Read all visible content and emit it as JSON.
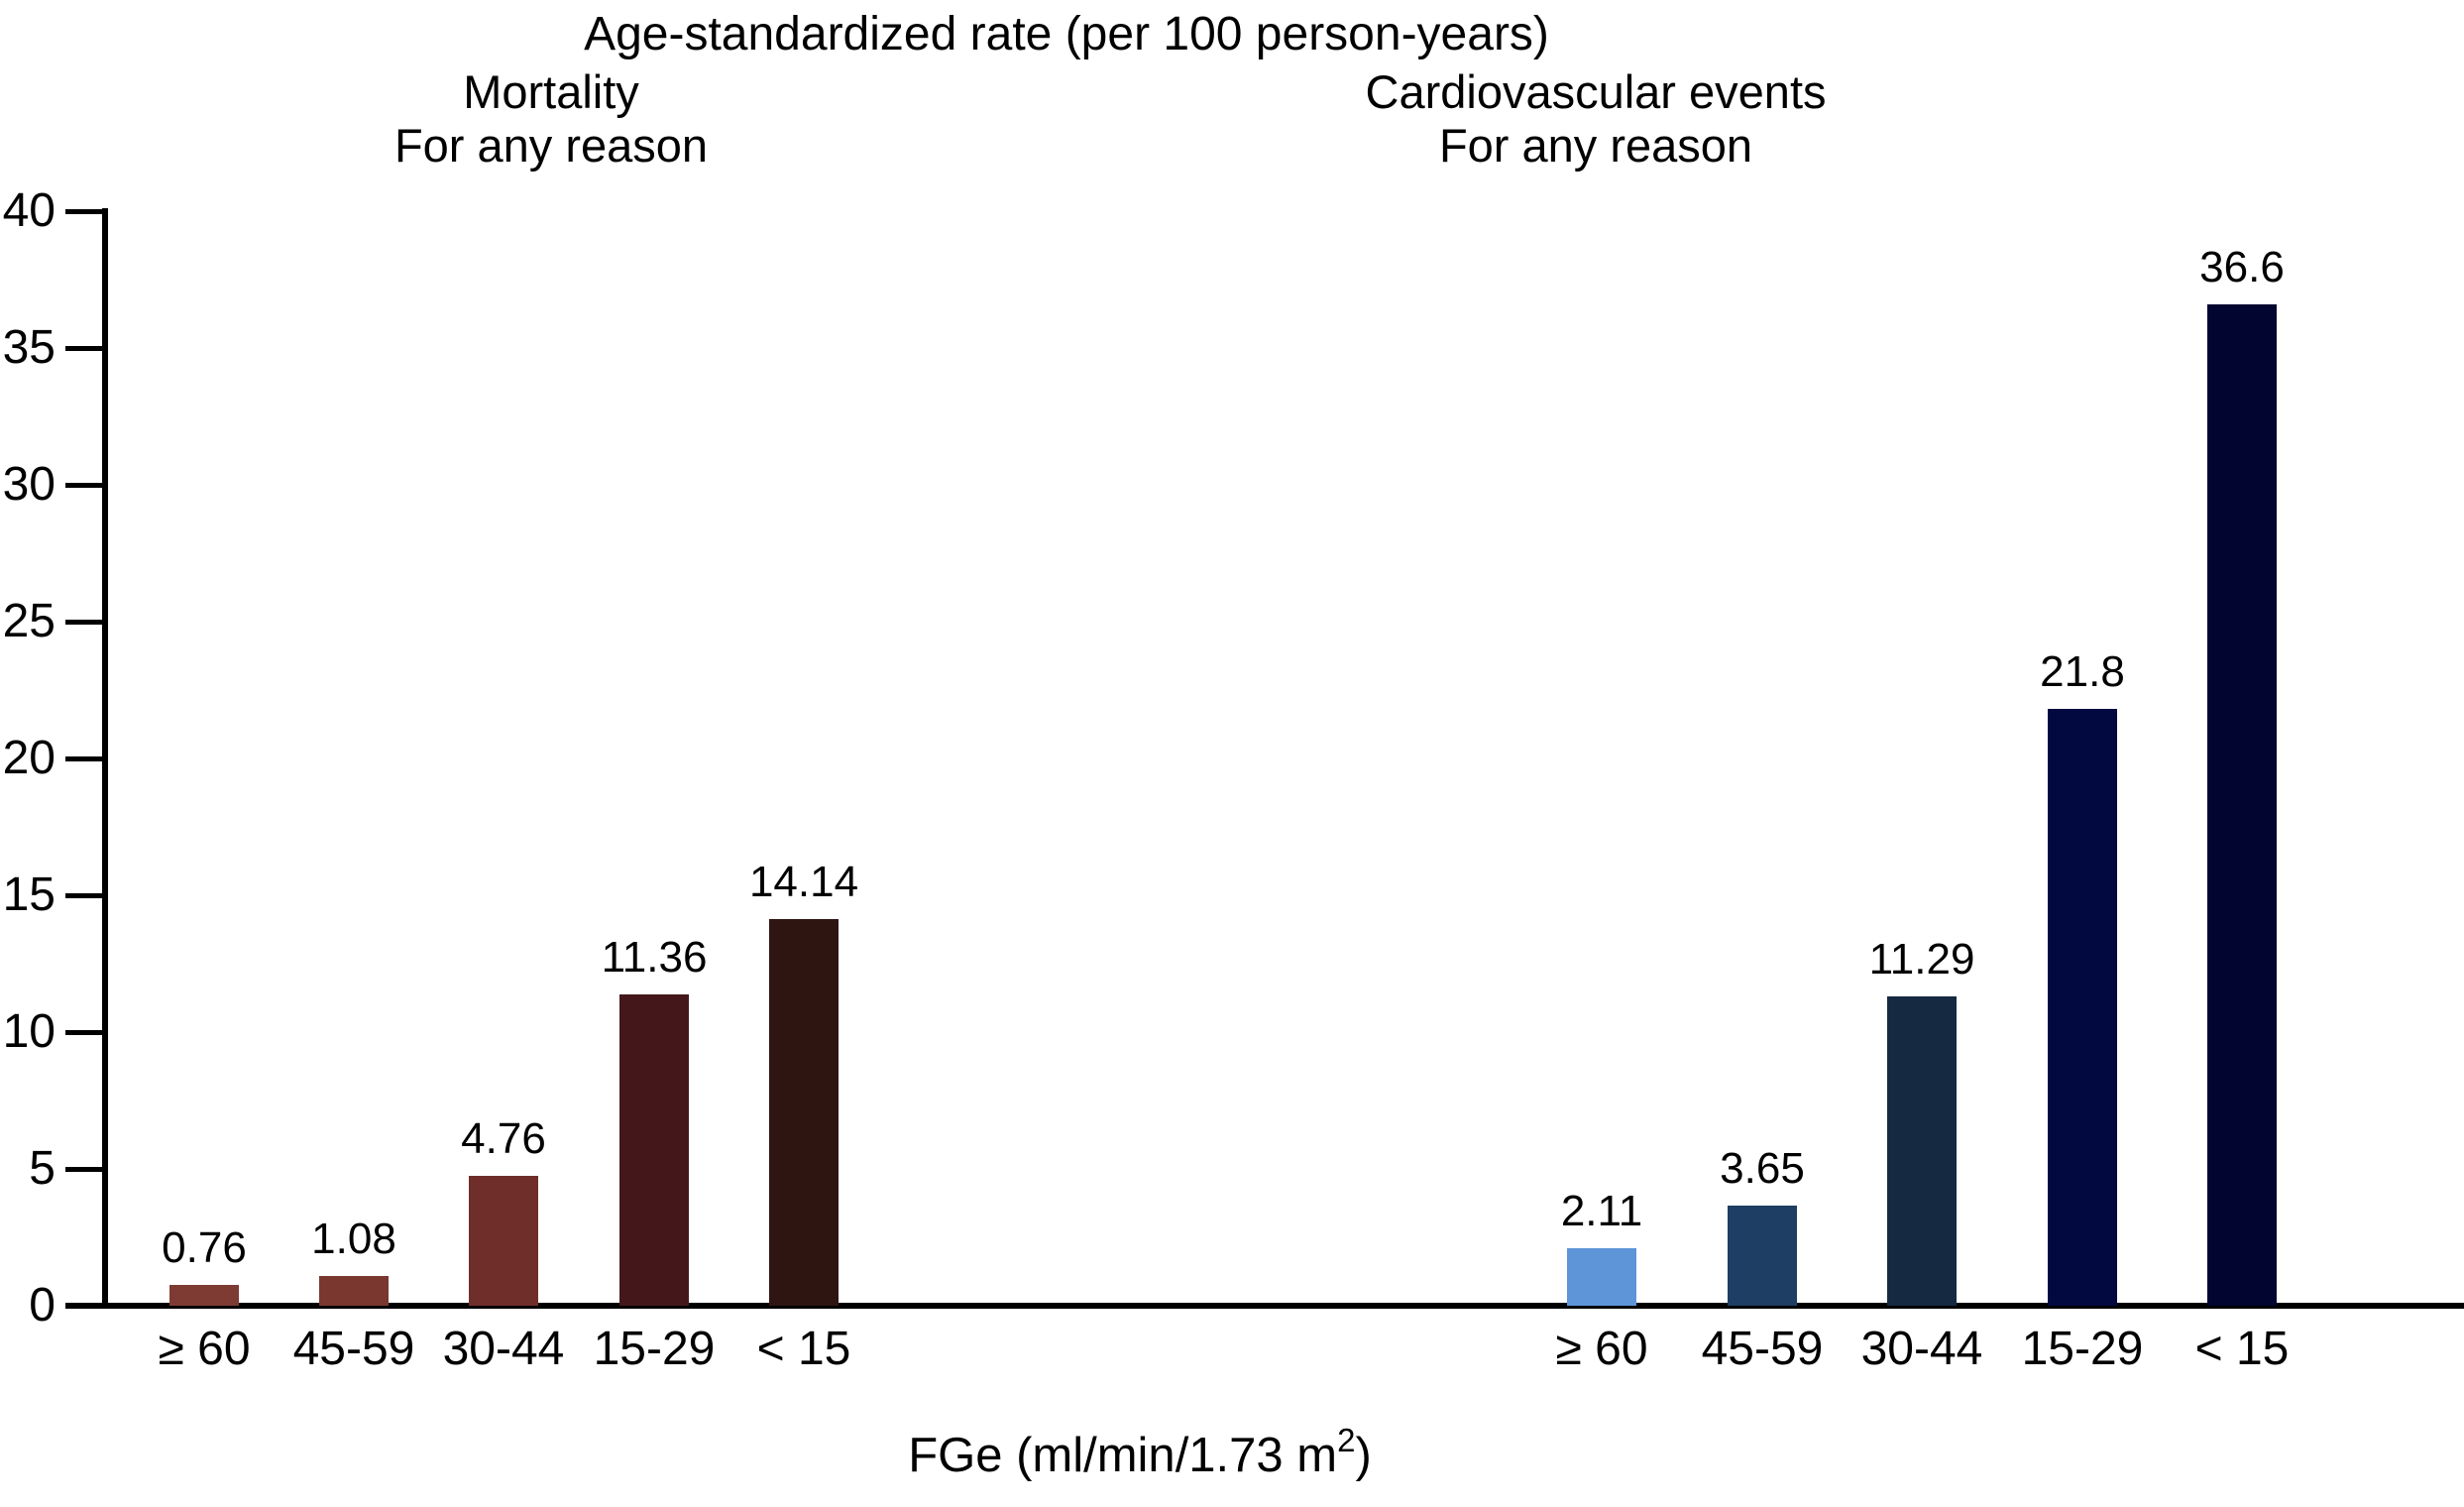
{
  "chart_data": {
    "type": "bar",
    "title": "Age-standardized rate (per 100 person-years)",
    "xlabel": {
      "prefix": "FGe (ml/min/1.73 m",
      "sup": "2",
      "suffix": ")"
    },
    "ylim": [
      0,
      40
    ],
    "yticks": [
      0,
      5,
      10,
      15,
      20,
      25,
      30,
      35,
      40
    ],
    "grid": false,
    "legend": null,
    "categories": [
      "≥ 60",
      "45-59",
      "30-44",
      "15-29",
      "< 15"
    ],
    "groups": [
      {
        "name": "mortality",
        "subtitle_line1": "Mortality",
        "subtitle_line2": "For any reason",
        "values": [
          0.76,
          1.08,
          4.76,
          11.36,
          14.14
        ],
        "value_labels": [
          "0.76",
          "1.08",
          "4.76",
          "11.36",
          "14.14"
        ],
        "bar_colors": [
          "#7d3b34",
          "#7a372f",
          "#702e2a",
          "#44181a",
          "#2f1512"
        ]
      },
      {
        "name": "cardiovascular-events",
        "subtitle_line1": "Cardiovascular events",
        "subtitle_line2": "For any reason",
        "values": [
          2.11,
          3.65,
          11.29,
          21.8,
          36.6
        ],
        "value_labels": [
          "2.11",
          "3.65",
          "11.29",
          "21.8",
          "36.6"
        ],
        "bar_colors": [
          "#5d95d8",
          "#1e3e63",
          "#152940",
          "#020840",
          "#020530"
        ]
      }
    ],
    "axis_color": "#000000",
    "text_color": "#000000"
  }
}
